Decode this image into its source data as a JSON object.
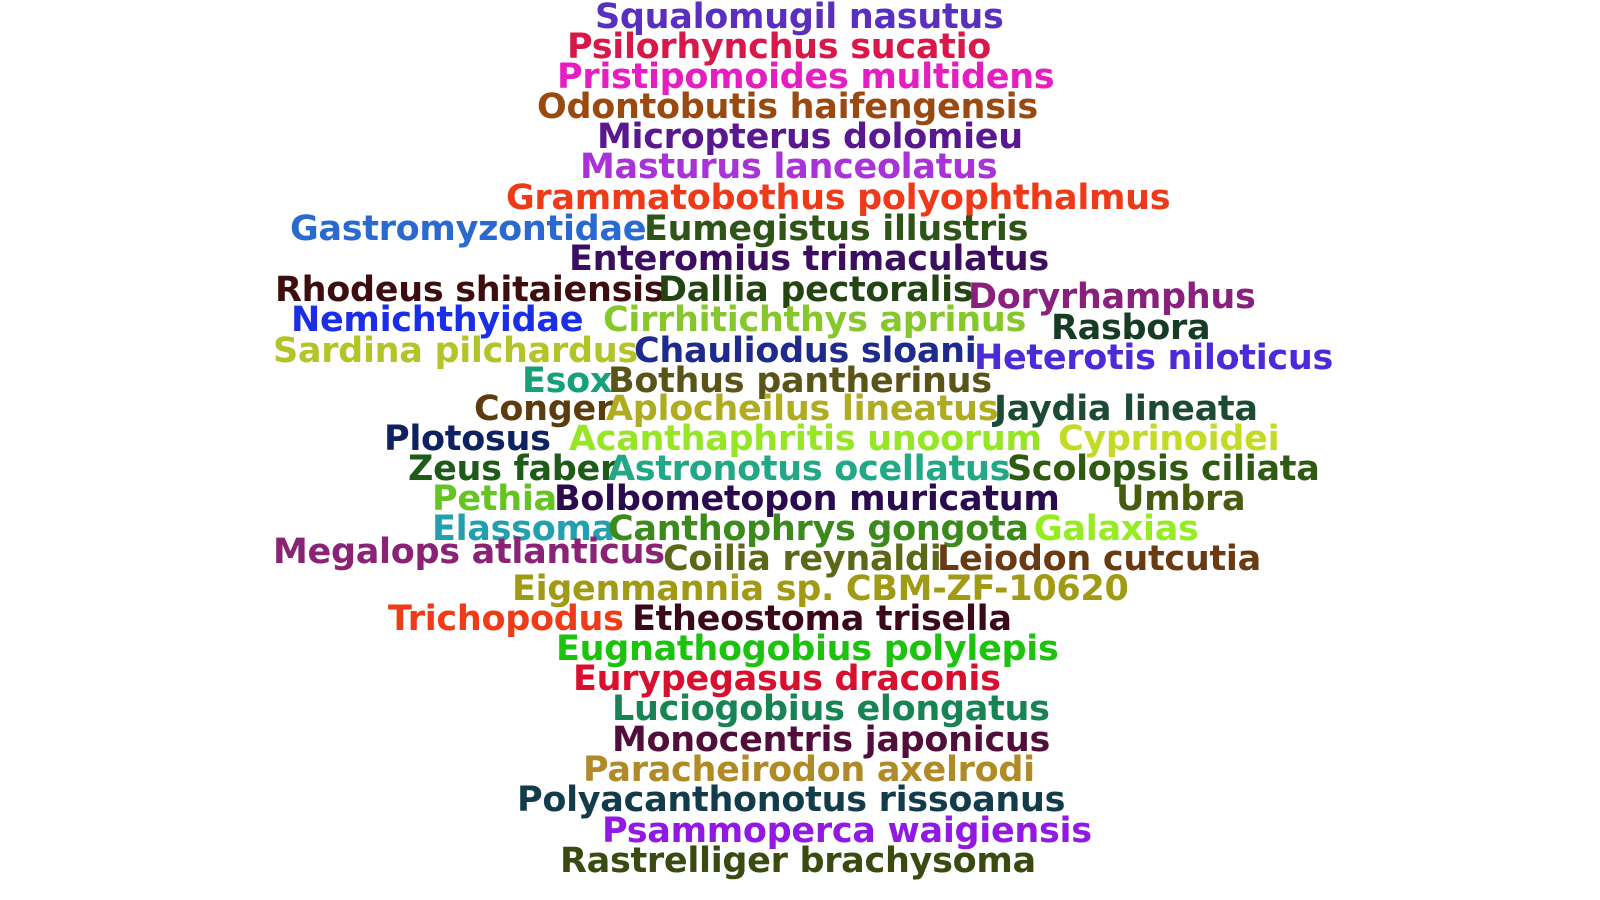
{
  "words": [
    {
      "text": "Squalomugil nasutus",
      "color": "#5a2fc0"
    },
    {
      "text": "Psilorhynchus sucatio",
      "color": "#d81848"
    },
    {
      "text": "Pristipomoides multidens",
      "color": "#e41ec0"
    },
    {
      "text": "Odontobutis haifengensis",
      "color": "#9a4a10"
    },
    {
      "text": "Micropterus dolomieu",
      "color": "#5a1890"
    },
    {
      "text": "Masturus lanceolatus",
      "color": "#a834d8"
    },
    {
      "text": "Grammatobothus polyophthalmus",
      "color": "#ee3a18"
    },
    {
      "text": "Gastromyzontidae",
      "color": "#2a6ad0"
    },
    {
      "text": "Eumegistus illustris",
      "color": "#2e5418"
    },
    {
      "text": "Enteromius trimaculatus",
      "color": "#3c0e60"
    },
    {
      "text": "Rhodeus shitaiensis",
      "color": "#3e0e0e"
    },
    {
      "text": "Dallia pectoralis",
      "color": "#244414"
    },
    {
      "text": "Doryrhamphus",
      "color": "#88207c"
    },
    {
      "text": "Nemichthyidae",
      "color": "#1a2ee8"
    },
    {
      "text": "Cirrhitichthys aprinus",
      "color": "#86c82c"
    },
    {
      "text": "Rasbora",
      "color": "#163c24"
    },
    {
      "text": "Sardina pilchardus",
      "color": "#b2c428"
    },
    {
      "text": "Chauliodus sloani",
      "color": "#1e2a8c"
    },
    {
      "text": "Heterotis niloticus",
      "color": "#4c2ad8"
    },
    {
      "text": "Esox",
      "color": "#18a07a"
    },
    {
      "text": "Bothus pantherinus",
      "color": "#5a5418"
    },
    {
      "text": "Conger",
      "color": "#5c3c0e"
    },
    {
      "text": "Aplocheilus lineatus",
      "color": "#b0ac22"
    },
    {
      "text": "Jaydia lineata",
      "color": "#1c4a34"
    },
    {
      "text": "Plotosus",
      "color": "#0e2262"
    },
    {
      "text": "Acanthaphritis unoorum",
      "color": "#96e626"
    },
    {
      "text": "Cyprinoidei",
      "color": "#c2dc26"
    },
    {
      "text": "Zeus faber",
      "color": "#1e5a18"
    },
    {
      "text": "Astronotus ocellatus",
      "color": "#22a884"
    },
    {
      "text": "Scolopsis ciliata",
      "color": "#2e5a12"
    },
    {
      "text": "Pethia",
      "color": "#66c422"
    },
    {
      "text": "Bolbometopon muricatum",
      "color": "#2a0c4e"
    },
    {
      "text": "Umbra",
      "color": "#4a5a10"
    },
    {
      "text": "Elassoma",
      "color": "#22a0b0"
    },
    {
      "text": "Canthophrys gongota",
      "color": "#3c8a1c"
    },
    {
      "text": "Galaxias",
      "color": "#96ec22"
    },
    {
      "text": "Megalops atlanticus",
      "color": "#8a2276"
    },
    {
      "text": "Coilia reynaldi",
      "color": "#5c6818"
    },
    {
      "text": "Leiodon cutcutia",
      "color": "#6a3a12"
    },
    {
      "text": "Eigenmannia sp. CBM-ZF-10620",
      "color": "#a09a14"
    },
    {
      "text": "Trichopodus",
      "color": "#f03a18"
    },
    {
      "text": "Etheostoma trisella",
      "color": "#3a0a1a"
    },
    {
      "text": "Eugnathogobius polylepis",
      "color": "#1cc20e"
    },
    {
      "text": "Eurypegasus draconis",
      "color": "#d8102e"
    },
    {
      "text": "Luciogobius elongatus",
      "color": "#188454"
    },
    {
      "text": "Monocentris japonicus",
      "color": "#520e3a"
    },
    {
      "text": "Paracheirodon axelrodi",
      "color": "#b08a26"
    },
    {
      "text": "Polyacanthonotus rissoanus",
      "color": "#123c4a"
    },
    {
      "text": "Psammoperca waigiensis",
      "color": "#9218e4"
    },
    {
      "text": "Rastrelliger brachysoma",
      "color": "#3a4a10"
    }
  ]
}
